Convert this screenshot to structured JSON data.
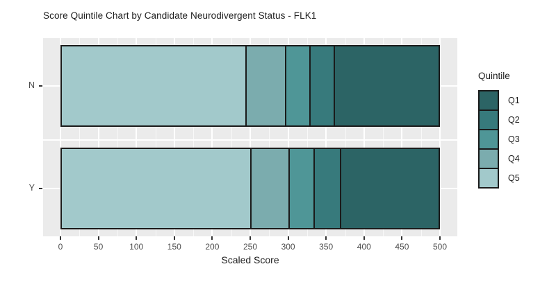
{
  "chart_data": {
    "type": "bar",
    "orientation": "horizontal",
    "stacked": true,
    "title": "Score Quintile Chart by Candidate Neurodivergent Status - FLK1",
    "xlabel": "Scaled Score",
    "ylabel": "",
    "categories": [
      "N",
      "Y"
    ],
    "stack_order_left_to_right": [
      "Q5",
      "Q4",
      "Q3",
      "Q2",
      "Q1"
    ],
    "series": [
      {
        "name": "Q1",
        "values": [
          137,
          129
        ]
      },
      {
        "name": "Q2",
        "values": [
          33,
          35
        ]
      },
      {
        "name": "Q3",
        "values": [
          32,
          33
        ]
      },
      {
        "name": "Q4",
        "values": [
          53,
          51
        ]
      },
      {
        "name": "Q5",
        "values": [
          245,
          252
        ]
      }
    ],
    "segment_right_edges": {
      "N": [
        245,
        298,
        330,
        363,
        500
      ],
      "Y": [
        252,
        303,
        336,
        371,
        500
      ]
    },
    "xlim": [
      0,
      500
    ],
    "x_ticks": [
      0,
      50,
      100,
      150,
      200,
      250,
      300,
      350,
      400,
      450,
      500
    ],
    "grid": {
      "major_every": 50,
      "minor_every": 25,
      "color": "#ffffff",
      "panel_background": "#ebebeb"
    },
    "legend": {
      "title": "Quintile",
      "position": "right",
      "items": [
        "Q1",
        "Q2",
        "Q3",
        "Q4",
        "Q5"
      ]
    },
    "colors": {
      "Q1": "#2c6465",
      "Q2": "#377a7c",
      "Q3": "#4f9697",
      "Q4": "#7bacae",
      "Q5": "#a2c9cb"
    },
    "bar_border_color": "#1a1a1a"
  }
}
